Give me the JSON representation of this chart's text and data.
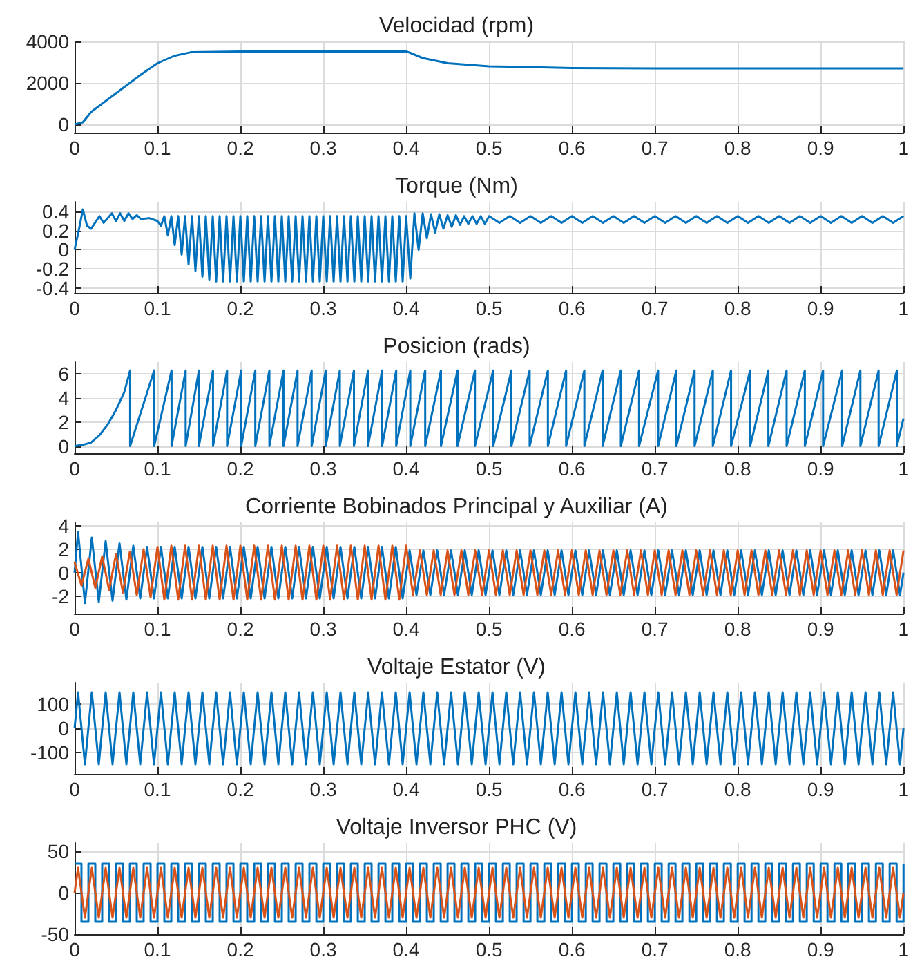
{
  "chart_data": [
    {
      "type": "line",
      "title": "Velocidad (rpm)",
      "xlim": [
        0,
        1
      ],
      "xticks": [
        0,
        0.1,
        0.2,
        0.3,
        0.4,
        0.5,
        0.6,
        0.7,
        0.8,
        0.9,
        1
      ],
      "ylim": [
        -400,
        4000
      ],
      "yticks": [
        0,
        2000,
        4000
      ],
      "grid": true,
      "x": [
        0,
        0.01,
        0.02,
        0.05,
        0.08,
        0.1,
        0.12,
        0.14,
        0.2,
        0.3,
        0.4,
        0.405,
        0.42,
        0.45,
        0.5,
        0.6,
        0.7,
        1
      ],
      "series": [
        {
          "color": "#0072bd",
          "values": [
            0,
            100,
            600,
            1500,
            2400,
            2950,
            3300,
            3480,
            3520,
            3520,
            3520,
            3450,
            3200,
            2950,
            2800,
            2720,
            2700,
            2700
          ]
        }
      ]
    },
    {
      "type": "line",
      "title": "Torque (Nm)",
      "xlim": [
        0,
        1
      ],
      "xticks": [
        0,
        0.1,
        0.2,
        0.3,
        0.4,
        0.5,
        0.6,
        0.7,
        0.8,
        0.9,
        1
      ],
      "ylim": [
        -0.45,
        0.5
      ],
      "yticks": [
        -0.4,
        -0.2,
        0,
        0.2,
        0.4
      ],
      "grid": true,
      "x": [
        0,
        0.005,
        0.01,
        0.015,
        0.02,
        0.03,
        0.035,
        0.045,
        0.05,
        0.055,
        0.06,
        0.065,
        0.07,
        0.075,
        0.08,
        0.09,
        0.1,
        0.1042,
        0.1083,
        0.1125,
        0.1167,
        0.1208,
        0.125,
        0.1292,
        0.1333,
        0.1375,
        0.1417,
        0.1458,
        0.15,
        0.1542,
        0.1583,
        0.1625,
        0.1667,
        0.1708,
        0.175,
        0.1792,
        0.1833,
        0.1875,
        0.1917,
        0.1958,
        0.2,
        0.2042,
        0.2083,
        0.2125,
        0.2167,
        0.2208,
        0.225,
        0.2292,
        0.2333,
        0.2375,
        0.2417,
        0.2458,
        0.25,
        0.2542,
        0.2583,
        0.2625,
        0.2667,
        0.2708,
        0.275,
        0.2792,
        0.2833,
        0.2875,
        0.2917,
        0.2958,
        0.3,
        0.3042,
        0.3083,
        0.3125,
        0.3167,
        0.3208,
        0.325,
        0.3292,
        0.3333,
        0.3375,
        0.3417,
        0.3458,
        0.35,
        0.3542,
        0.3583,
        0.3625,
        0.3667,
        0.3708,
        0.375,
        0.3792,
        0.3833,
        0.3875,
        0.3917,
        0.3958,
        0.4,
        0.405,
        0.41,
        0.415,
        0.42,
        0.425,
        0.43,
        0.435,
        0.44,
        0.445,
        0.45,
        0.455,
        0.46,
        0.465,
        0.47,
        0.475,
        0.48,
        0.485,
        0.49,
        0.495,
        0.5,
        0.5125,
        0.525,
        0.5375,
        0.55,
        0.5625,
        0.575,
        0.5875,
        0.6,
        0.6125,
        0.625,
        0.6375,
        0.65,
        0.6625,
        0.675,
        0.6875,
        0.7,
        0.7125,
        0.725,
        0.7375,
        0.75,
        0.7625,
        0.775,
        0.7875,
        0.8,
        0.8125,
        0.825,
        0.8375,
        0.85,
        0.8625,
        0.875,
        0.8875,
        0.9,
        0.9125,
        0.925,
        0.9375,
        0.95,
        0.9625,
        0.975,
        0.9875,
        1
      ],
      "series": [
        {
          "color": "#0072bd",
          "values": [
            0,
            0.2,
            0.42,
            0.25,
            0.22,
            0.35,
            0.28,
            0.38,
            0.3,
            0.38,
            0.3,
            0.38,
            0.32,
            0.36,
            0.32,
            0.33,
            0.3,
            0.25,
            0.35,
            0.15,
            0.35,
            0.05,
            0.35,
            -0.05,
            0.35,
            -0.15,
            0.35,
            -0.22,
            0.35,
            -0.28,
            0.35,
            -0.31,
            0.35,
            -0.33,
            0.35,
            -0.33,
            0.35,
            -0.33,
            0.35,
            -0.33,
            0.35,
            -0.33,
            0.35,
            -0.33,
            0.35,
            -0.33,
            0.35,
            -0.33,
            0.35,
            -0.33,
            0.35,
            -0.33,
            0.35,
            -0.33,
            0.35,
            -0.33,
            0.35,
            -0.33,
            0.35,
            -0.33,
            0.35,
            -0.33,
            0.35,
            -0.33,
            0.35,
            -0.33,
            0.35,
            -0.33,
            0.35,
            -0.33,
            0.35,
            -0.33,
            0.35,
            -0.33,
            0.35,
            -0.33,
            0.35,
            -0.33,
            0.35,
            -0.33,
            0.35,
            -0.33,
            0.35,
            -0.33,
            0.35,
            -0.33,
            0.35,
            -0.33,
            0.35,
            -0.3,
            0.38,
            0.0,
            0.38,
            0.12,
            0.37,
            0.18,
            0.37,
            0.22,
            0.36,
            0.24,
            0.36,
            0.26,
            0.35,
            0.27,
            0.35,
            0.27,
            0.35,
            0.27,
            0.35,
            0.28,
            0.35,
            0.28,
            0.35,
            0.28,
            0.35,
            0.28,
            0.35,
            0.28,
            0.35,
            0.28,
            0.35,
            0.28,
            0.35,
            0.28,
            0.35,
            0.28,
            0.35,
            0.28,
            0.35,
            0.28,
            0.35,
            0.28,
            0.35,
            0.28,
            0.35,
            0.28,
            0.35,
            0.28,
            0.35,
            0.28,
            0.35,
            0.28,
            0.35,
            0.28,
            0.35,
            0.28,
            0.35,
            0.28,
            0.35
          ]
        }
      ]
    },
    {
      "type": "line",
      "title": "Posicion (rads)",
      "xlim": [
        0,
        1
      ],
      "xticks": [
        0,
        0.1,
        0.2,
        0.3,
        0.4,
        0.5,
        0.6,
        0.7,
        0.8,
        0.9,
        1
      ],
      "ylim": [
        -0.6,
        7
      ],
      "yticks": [
        0,
        2,
        4,
        6
      ],
      "grid": true,
      "x": [
        0,
        0.01,
        0.02,
        0.03,
        0.04,
        0.05,
        0.06,
        0.067,
        0.067,
        0.096,
        0.096,
        0.117,
        0.117,
        0.134,
        0.134,
        0.15,
        0.15,
        0.167,
        0.167,
        0.184,
        0.184,
        0.201,
        0.201,
        0.218,
        0.218,
        0.235,
        0.235,
        0.252,
        0.252,
        0.269,
        0.269,
        0.286,
        0.286,
        0.303,
        0.303,
        0.32,
        0.32,
        0.337,
        0.337,
        0.354,
        0.354,
        0.371,
        0.371,
        0.388,
        0.388,
        0.405,
        0.405,
        0.423,
        0.423,
        0.442,
        0.442,
        0.462,
        0.462,
        0.483,
        0.483,
        0.505,
        0.505,
        0.527,
        0.527,
        0.549,
        0.549,
        0.571,
        0.571,
        0.593,
        0.593,
        0.615,
        0.615,
        0.637,
        0.637,
        0.659,
        0.659,
        0.681,
        0.681,
        0.704,
        0.704,
        0.726,
        0.726,
        0.748,
        0.748,
        0.77,
        0.77,
        0.792,
        0.792,
        0.815,
        0.815,
        0.837,
        0.837,
        0.859,
        0.859,
        0.881,
        0.881,
        0.903,
        0.903,
        0.926,
        0.926,
        0.948,
        0.948,
        0.97,
        0.97,
        0.992,
        0.992,
        1
      ],
      "series": [
        {
          "color": "#0072bd",
          "values": [
            0,
            0.1,
            0.3,
            0.9,
            1.8,
            3,
            4.5,
            6.3,
            0,
            6.3,
            0,
            6.3,
            0,
            6.3,
            0,
            6.3,
            0,
            6.3,
            0,
            6.3,
            0,
            6.3,
            0,
            6.3,
            0,
            6.3,
            0,
            6.3,
            0,
            6.3,
            0,
            6.3,
            0,
            6.3,
            0,
            6.3,
            0,
            6.3,
            0,
            6.3,
            0,
            6.3,
            0,
            6.3,
            0,
            6.3,
            0,
            6.3,
            0,
            6.3,
            0,
            6.3,
            0,
            6.3,
            0,
            6.3,
            0,
            6.3,
            0,
            6.3,
            0,
            6.3,
            0,
            6.3,
            0,
            6.3,
            0,
            6.3,
            0,
            6.3,
            0,
            6.3,
            0,
            6.3,
            0,
            6.3,
            0,
            6.3,
            0,
            6.3,
            0,
            6.3,
            0,
            6.3,
            0,
            6.3,
            0,
            6.3,
            0,
            6.3,
            0,
            6.3,
            0,
            6.3,
            0,
            6.3,
            0,
            6.3,
            0,
            6.3,
            0,
            2.3
          ]
        }
      ]
    },
    {
      "type": "line",
      "title": "Corriente Bobinados Principal y Auxiliar (A)",
      "xlim": [
        0,
        1
      ],
      "xticks": [
        0,
        0.1,
        0.2,
        0.3,
        0.4,
        0.5,
        0.6,
        0.7,
        0.8,
        0.9,
        1
      ],
      "ylim": [
        -3.5,
        4.3
      ],
      "yticks": [
        -2,
        0,
        2,
        4
      ],
      "grid": true,
      "series": [
        {
          "color": "#0072bd",
          "x": [
            0,
            0.0042,
            0.0125,
            0.0208,
            0.0292,
            0.0375,
            0.0458,
            0.0542,
            0.0625,
            0.0708,
            0.0792,
            0.0875,
            0.0958,
            0.1042,
            0.1125,
            0.1208,
            0.1292,
            0.1375,
            0.1458,
            0.1542,
            0.1625,
            0.1708,
            0.1792,
            0.1875,
            0.1958,
            0.2042,
            0.2125,
            0.2208,
            0.2292,
            0.2375,
            0.2458,
            0.2542,
            0.2625,
            0.2708,
            0.2792,
            0.2875,
            0.2958,
            0.3042,
            0.3125,
            0.3208,
            0.3292,
            0.3375,
            0.3458,
            0.3542,
            0.3625,
            0.3708,
            0.3792,
            0.3875,
            0.3958,
            0.4042,
            0.4125,
            0.4208,
            0.4292,
            0.4375,
            0.4458,
            0.4542,
            0.4625,
            0.4708,
            0.4792,
            0.4875,
            0.4958,
            0.5042,
            0.5125,
            0.5208,
            0.5292,
            0.5375,
            0.5458,
            0.5542,
            0.5625,
            0.5708,
            0.5792,
            0.5875,
            0.5958,
            0.6042,
            0.6125,
            0.6208,
            0.6292,
            0.6375,
            0.6458,
            0.6542,
            0.6625,
            0.6708,
            0.6792,
            0.6875,
            0.6958,
            0.7042,
            0.7125,
            0.7208,
            0.7292,
            0.7375,
            0.7458,
            0.7542,
            0.7625,
            0.7708,
            0.7792,
            0.7875,
            0.7958,
            0.8042,
            0.8125,
            0.8208,
            0.8292,
            0.8375,
            0.8458,
            0.8542,
            0.8625,
            0.8708,
            0.8792,
            0.8875,
            0.8958,
            0.9042,
            0.9125,
            0.9208,
            0.9292,
            0.9375,
            0.9458,
            0.9542,
            0.9625,
            0.9708,
            0.9792,
            0.9875,
            0.9958,
            1
          ],
          "values": [
            0,
            3.5,
            -2.6,
            3.0,
            -2.5,
            2.7,
            -2.4,
            2.5,
            -2.3,
            2.3,
            -2.2,
            2.2,
            -2.2,
            2.2,
            -2.2,
            2.2,
            -2.2,
            2.2,
            -2.2,
            2.2,
            -2.2,
            2.2,
            -2.2,
            2.2,
            -2.2,
            2.2,
            -2.2,
            2.2,
            -2.2,
            2.2,
            -2.2,
            2.2,
            -2.2,
            2.2,
            -2.2,
            2.2,
            -2.2,
            2.2,
            -2.2,
            2.2,
            -2.2,
            2.2,
            -2.2,
            2.2,
            -2.2,
            2.2,
            -2.2,
            2.2,
            -2.2,
            1.9,
            -1.9,
            1.9,
            -1.9,
            1.9,
            -1.9,
            1.9,
            -1.9,
            1.9,
            -1.9,
            1.9,
            -1.9,
            1.9,
            -1.9,
            1.9,
            -1.9,
            1.9,
            -1.9,
            1.9,
            -1.9,
            1.9,
            -1.9,
            1.9,
            -1.9,
            1.9,
            -1.9,
            1.9,
            -1.9,
            1.9,
            -1.9,
            1.9,
            -1.9,
            1.9,
            -1.9,
            1.9,
            -1.9,
            1.9,
            -1.9,
            1.9,
            -1.9,
            1.9,
            -1.9,
            1.9,
            -1.9,
            1.9,
            -1.9,
            1.9,
            -1.9,
            1.9,
            -1.9,
            1.9,
            -1.9,
            1.9,
            -1.9,
            1.9,
            -1.9,
            1.9,
            -1.9,
            1.9,
            -1.9,
            1.9,
            -1.9,
            1.9,
            -1.9,
            1.9,
            -1.9,
            1.9,
            -1.9,
            1.9,
            -1.9,
            1.9,
            -1.9,
            0
          ]
        },
        {
          "color": "#d95319",
          "x": [
            0,
            0.0083,
            0.0167,
            0.025,
            0.0333,
            0.0417,
            0.05,
            0.0583,
            0.0667,
            0.075,
            0.0833,
            0.0917,
            0.1,
            0.1083,
            0.1167,
            0.125,
            0.1333,
            0.1417,
            0.15,
            0.1583,
            0.1667,
            0.175,
            0.1833,
            0.1917,
            0.2,
            0.2083,
            0.2167,
            0.225,
            0.2333,
            0.2417,
            0.25,
            0.2583,
            0.2667,
            0.275,
            0.2833,
            0.2917,
            0.3,
            0.3083,
            0.3167,
            0.325,
            0.3333,
            0.3417,
            0.35,
            0.3583,
            0.3667,
            0.375,
            0.3833,
            0.3917,
            0.4,
            0.4083,
            0.4167,
            0.425,
            0.4333,
            0.4417,
            0.45,
            0.4583,
            0.4667,
            0.475,
            0.4833,
            0.4917,
            0.5,
            0.5083,
            0.5167,
            0.525,
            0.5333,
            0.5417,
            0.55,
            0.5583,
            0.5667,
            0.575,
            0.5833,
            0.5917,
            0.6,
            0.6083,
            0.6167,
            0.625,
            0.6333,
            0.6417,
            0.65,
            0.6583,
            0.6667,
            0.675,
            0.6833,
            0.6917,
            0.7,
            0.7083,
            0.7167,
            0.725,
            0.7333,
            0.7417,
            0.75,
            0.7583,
            0.7667,
            0.775,
            0.7833,
            0.7917,
            0.8,
            0.8083,
            0.8167,
            0.825,
            0.8333,
            0.8417,
            0.85,
            0.8583,
            0.8667,
            0.875,
            0.8833,
            0.8917,
            0.9,
            0.9083,
            0.9167,
            0.925,
            0.9333,
            0.9417,
            0.95,
            0.9583,
            0.9667,
            0.975,
            0.9833,
            0.9917,
            1
          ],
          "values": [
            0.9,
            -1.1,
            1.2,
            -1.3,
            1.4,
            -1.5,
            1.6,
            -1.7,
            1.8,
            -1.9,
            2.0,
            -2.1,
            2.2,
            -2.3,
            2.3,
            -2.3,
            2.3,
            -2.3,
            2.3,
            -2.3,
            2.3,
            -2.3,
            2.3,
            -2.3,
            2.3,
            -2.3,
            2.3,
            -2.3,
            2.3,
            -2.3,
            2.3,
            -2.3,
            2.3,
            -2.3,
            2.3,
            -2.3,
            2.3,
            -2.3,
            2.3,
            -2.3,
            2.3,
            -2.3,
            2.3,
            -2.3,
            2.3,
            -2.3,
            2.3,
            -2.3,
            2.3,
            -1.9,
            1.9,
            -1.9,
            1.9,
            -1.9,
            1.9,
            -1.9,
            1.9,
            -1.9,
            1.9,
            -1.9,
            1.9,
            -1.9,
            1.9,
            -1.9,
            1.9,
            -1.9,
            1.9,
            -1.9,
            1.9,
            -1.9,
            1.9,
            -1.9,
            1.9,
            -1.9,
            1.9,
            -1.9,
            1.9,
            -1.9,
            1.9,
            -1.9,
            1.9,
            -1.9,
            1.9,
            -1.9,
            1.9,
            -1.9,
            1.9,
            -1.9,
            1.9,
            -1.9,
            1.9,
            -1.9,
            1.9,
            -1.9,
            1.9,
            -1.9,
            1.9,
            -1.9,
            1.9,
            -1.9,
            1.9,
            -1.9,
            1.9,
            -1.9,
            1.9,
            -1.9,
            1.9,
            -1.9,
            1.9,
            -1.9,
            1.9,
            -1.9,
            1.9,
            -1.9,
            1.9,
            -1.9,
            1.9,
            -1.9,
            1.9,
            -1.9,
            1.9
          ]
        }
      ]
    },
    {
      "type": "line",
      "title": "Voltaje Estator (V)",
      "xlim": [
        0,
        1
      ],
      "xticks": [
        0,
        0.1,
        0.2,
        0.3,
        0.4,
        0.5,
        0.6,
        0.7,
        0.8,
        0.9,
        1
      ],
      "ylim": [
        -190,
        190
      ],
      "yticks": [
        -100,
        0,
        100
      ],
      "grid": true,
      "x": [
        0,
        0.0042,
        0.0125,
        0.0208,
        0.0292,
        0.0375,
        0.0458,
        0.0542,
        0.0625,
        0.0708,
        0.0792,
        0.0875,
        0.0958,
        0.1042,
        0.1125,
        0.1208,
        0.1292,
        0.1375,
        0.1458,
        0.1542,
        0.1625,
        0.1708,
        0.1792,
        0.1875,
        0.1958,
        0.2042,
        0.2125,
        0.2208,
        0.2292,
        0.2375,
        0.2458,
        0.2542,
        0.2625,
        0.2708,
        0.2792,
        0.2875,
        0.2958,
        0.3042,
        0.3125,
        0.3208,
        0.3292,
        0.3375,
        0.3458,
        0.3542,
        0.3625,
        0.3708,
        0.3792,
        0.3875,
        0.3958,
        0.4042,
        0.4125,
        0.4208,
        0.4292,
        0.4375,
        0.4458,
        0.4542,
        0.4625,
        0.4708,
        0.4792,
        0.4875,
        0.4958,
        0.5042,
        0.5125,
        0.5208,
        0.5292,
        0.5375,
        0.5458,
        0.5542,
        0.5625,
        0.5708,
        0.5792,
        0.5875,
        0.5958,
        0.6042,
        0.6125,
        0.6208,
        0.6292,
        0.6375,
        0.6458,
        0.6542,
        0.6625,
        0.6708,
        0.6792,
        0.6875,
        0.6958,
        0.7042,
        0.7125,
        0.7208,
        0.7292,
        0.7375,
        0.7458,
        0.7542,
        0.7625,
        0.7708,
        0.7792,
        0.7875,
        0.7958,
        0.8042,
        0.8125,
        0.8208,
        0.8292,
        0.8375,
        0.8458,
        0.8542,
        0.8625,
        0.8708,
        0.8792,
        0.8875,
        0.8958,
        0.9042,
        0.9125,
        0.9208,
        0.9292,
        0.9375,
        0.9458,
        0.9542,
        0.9625,
        0.9708,
        0.9792,
        0.9875,
        0.9958,
        1
      ],
      "series": [
        {
          "color": "#0072bd",
          "values": [
            0,
            150,
            -150,
            150,
            -150,
            150,
            -150,
            150,
            -150,
            150,
            -150,
            150,
            -150,
            150,
            -150,
            150,
            -150,
            150,
            -150,
            150,
            -150,
            150,
            -150,
            150,
            -150,
            150,
            -150,
            150,
            -150,
            150,
            -150,
            150,
            -150,
            150,
            -150,
            150,
            -150,
            150,
            -150,
            150,
            -150,
            150,
            -150,
            150,
            -150,
            150,
            -150,
            150,
            -150,
            150,
            -150,
            150,
            -150,
            150,
            -150,
            150,
            -150,
            150,
            -150,
            150,
            -150,
            150,
            -150,
            150,
            -150,
            150,
            -150,
            150,
            -150,
            150,
            -150,
            150,
            -150,
            150,
            -150,
            150,
            -150,
            150,
            -150,
            150,
            -150,
            150,
            -150,
            150,
            -150,
            150,
            -150,
            150,
            -150,
            150,
            -150,
            150,
            -150,
            150,
            -150,
            150,
            -150,
            150,
            -150,
            150,
            -150,
            150,
            -150,
            150,
            -150,
            150,
            -150,
            150,
            -150,
            150,
            -150,
            150,
            -150,
            150,
            -150,
            150,
            -150,
            150,
            -150,
            150,
            -150,
            0
          ]
        }
      ]
    },
    {
      "type": "line",
      "title": "Voltaje Inversor PHC (V)",
      "xlim": [
        0,
        1
      ],
      "xticks": [
        0,
        0.1,
        0.2,
        0.3,
        0.4,
        0.5,
        0.6,
        0.7,
        0.8,
        0.9,
        1
      ],
      "ylim": [
        -50,
        60
      ],
      "yticks": [
        -50,
        0,
        50
      ],
      "grid": true,
      "series": [
        {
          "type": "step",
          "color": "#0072bd",
          "x": [
            0,
            0.0083,
            0.0167,
            0.025,
            0.0333,
            0.0417,
            0.05,
            0.0583,
            0.0667,
            0.075,
            0.0833,
            0.0917,
            0.1,
            0.1083,
            0.1167,
            0.125,
            0.1333,
            0.1417,
            0.15,
            0.1583,
            0.1667,
            0.175,
            0.1833,
            0.1917,
            0.2,
            0.2083,
            0.2167,
            0.225,
            0.2333,
            0.2417,
            0.25,
            0.2583,
            0.2667,
            0.275,
            0.2833,
            0.2917,
            0.3,
            0.3083,
            0.3167,
            0.325,
            0.3333,
            0.3417,
            0.35,
            0.3583,
            0.3667,
            0.375,
            0.3833,
            0.3917,
            0.4,
            0.4083,
            0.4167,
            0.425,
            0.4333,
            0.4417,
            0.45,
            0.4583,
            0.4667,
            0.475,
            0.4833,
            0.4917,
            0.5,
            0.5083,
            0.5167,
            0.525,
            0.5333,
            0.5417,
            0.55,
            0.5583,
            0.5667,
            0.575,
            0.5833,
            0.5917,
            0.6,
            0.6083,
            0.6167,
            0.625,
            0.6333,
            0.6417,
            0.65,
            0.6583,
            0.6667,
            0.675,
            0.6833,
            0.6917,
            0.7,
            0.7083,
            0.7167,
            0.725,
            0.7333,
            0.7417,
            0.75,
            0.7583,
            0.7667,
            0.775,
            0.7833,
            0.7917,
            0.8,
            0.8083,
            0.8167,
            0.825,
            0.8333,
            0.8417,
            0.85,
            0.8583,
            0.8667,
            0.875,
            0.8833,
            0.8917,
            0.9,
            0.9083,
            0.9167,
            0.925,
            0.9333,
            0.9417,
            0.95,
            0.9583,
            0.9667,
            0.975,
            0.9833,
            0.9917,
            1
          ],
          "values": [
            35,
            -35,
            35,
            -35,
            35,
            -35,
            35,
            -35,
            35,
            -35,
            35,
            -35,
            35,
            -35,
            35,
            -35,
            35,
            -35,
            35,
            -35,
            35,
            -35,
            35,
            -35,
            35,
            -35,
            35,
            -35,
            35,
            -35,
            35,
            -35,
            35,
            -35,
            35,
            -35,
            35,
            -35,
            35,
            -35,
            35,
            -35,
            35,
            -35,
            35,
            -35,
            35,
            -35,
            35,
            -35,
            35,
            -35,
            35,
            -35,
            35,
            -35,
            35,
            -35,
            35,
            -35,
            35,
            -35,
            35,
            -35,
            35,
            -35,
            35,
            -35,
            35,
            -35,
            35,
            -35,
            35,
            -35,
            35,
            -35,
            35,
            -35,
            35,
            -35,
            35,
            -35,
            35,
            -35,
            35,
            -35,
            35,
            -35,
            35,
            -35,
            35,
            -35,
            35,
            -35,
            35,
            -35,
            35,
            -35,
            35,
            -35,
            35,
            -35,
            35,
            -35,
            35,
            -35,
            35,
            -35,
            35,
            -35,
            35,
            -35,
            35,
            -35,
            35,
            -35,
            35,
            -35,
            35,
            -35,
            35
          ]
        },
        {
          "color": "#d95319",
          "x": [
            0,
            0.0042,
            0.0125,
            0.0208,
            0.0292,
            0.0375,
            0.0458,
            0.0542,
            0.0625,
            0.0708,
            0.0792,
            0.0875,
            0.0958,
            0.1042,
            0.1125,
            0.1208,
            0.1292,
            0.1375,
            0.1458,
            0.1542,
            0.1625,
            0.1708,
            0.1792,
            0.1875,
            0.1958,
            0.2042,
            0.2125,
            0.2208,
            0.2292,
            0.2375,
            0.2458,
            0.2542,
            0.2625,
            0.2708,
            0.2792,
            0.2875,
            0.2958,
            0.3042,
            0.3125,
            0.3208,
            0.3292,
            0.3375,
            0.3458,
            0.3542,
            0.3625,
            0.3708,
            0.3792,
            0.3875,
            0.3958,
            0.4042,
            0.4125,
            0.4208,
            0.4292,
            0.4375,
            0.4458,
            0.4542,
            0.4625,
            0.4708,
            0.4792,
            0.4875,
            0.4958,
            0.5042,
            0.5125,
            0.5208,
            0.5292,
            0.5375,
            0.5458,
            0.5542,
            0.5625,
            0.5708,
            0.5792,
            0.5875,
            0.5958,
            0.6042,
            0.6125,
            0.6208,
            0.6292,
            0.6375,
            0.6458,
            0.6542,
            0.6625,
            0.6708,
            0.6792,
            0.6875,
            0.6958,
            0.7042,
            0.7125,
            0.7208,
            0.7292,
            0.7375,
            0.7458,
            0.7542,
            0.7625,
            0.7708,
            0.7792,
            0.7875,
            0.7958,
            0.8042,
            0.8125,
            0.8208,
            0.8292,
            0.8375,
            0.8458,
            0.8542,
            0.8625,
            0.8708,
            0.8792,
            0.8875,
            0.8958,
            0.9042,
            0.9125,
            0.9208,
            0.9292,
            0.9375,
            0.9458,
            0.9542,
            0.9625,
            0.9708,
            0.9792,
            0.9875,
            0.9958,
            1
          ],
          "values": [
            0,
            30,
            -30,
            30,
            -30,
            30,
            -30,
            30,
            -30,
            30,
            -30,
            30,
            -30,
            30,
            -30,
            30,
            -30,
            30,
            -30,
            30,
            -30,
            30,
            -30,
            30,
            -30,
            30,
            -30,
            30,
            -30,
            30,
            -30,
            30,
            -30,
            30,
            -30,
            30,
            -30,
            30,
            -30,
            30,
            -30,
            30,
            -30,
            30,
            -30,
            30,
            -30,
            30,
            -30,
            30,
            -30,
            30,
            -30,
            30,
            -30,
            30,
            -30,
            30,
            -30,
            30,
            -30,
            30,
            -30,
            30,
            -30,
            30,
            -30,
            30,
            -30,
            30,
            -30,
            30,
            -30,
            30,
            -30,
            30,
            -30,
            30,
            -30,
            30,
            -30,
            30,
            -30,
            30,
            -30,
            30,
            -30,
            30,
            -30,
            30,
            -30,
            30,
            -30,
            30,
            -30,
            30,
            -30,
            30,
            -30,
            30,
            -30,
            30,
            -30,
            30,
            -30,
            30,
            -30,
            30,
            -30,
            30,
            -30,
            30,
            -30,
            30,
            -30,
            30,
            -30,
            30,
            -30,
            30,
            -30,
            0
          ]
        }
      ]
    }
  ]
}
